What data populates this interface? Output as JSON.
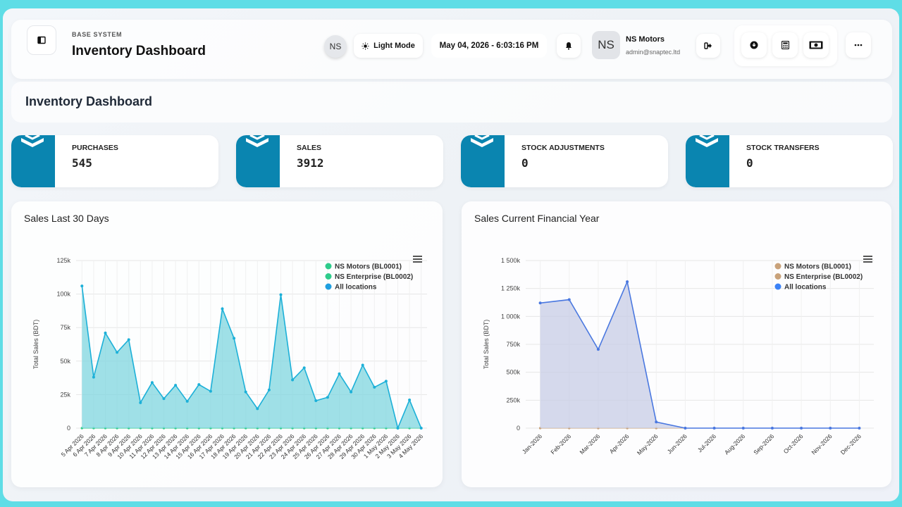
{
  "header": {
    "eyebrow": "BASE SYSTEM",
    "title": "Inventory Dashboard",
    "ns_chip": "NS",
    "light_mode_label": "Light Mode",
    "datetime": "May 04, 2026 - 6:03:16 PM",
    "avatar": "NS",
    "user_name": "NS Motors",
    "user_email": "admin@snaptec.ltd"
  },
  "page_title": "Inventory Dashboard",
  "stats": [
    {
      "label": "PURCHASES",
      "value": "545"
    },
    {
      "label": "SALES",
      "value": "3912"
    },
    {
      "label": "STOCK ADJUSTMENTS",
      "value": "0"
    },
    {
      "label": "STOCK TRANSFERS",
      "value": "0"
    }
  ],
  "colors": {
    "accent": "#0a85b0",
    "series_30days": "#1cb0d8",
    "fill_30days": "#7fd6df",
    "series_fy": "#4a78e0",
    "fill_fy": "#c7cce6",
    "legend_green": "#2ecc8b",
    "legend_teal": "#2ecc8b",
    "legend_blue": "#1f9fe0",
    "legend_tan": "#c9a27a",
    "legend_blue2": "#3b82f6"
  },
  "chart_data": [
    {
      "type": "area",
      "title": "Sales Last 30 Days",
      "ylabel": "Total Sales (BDT)",
      "ylim": [
        0,
        125000
      ],
      "yticks": [
        "0",
        "25k",
        "50k",
        "75k",
        "100k",
        "125k"
      ],
      "categories": [
        "5 Apr 2026",
        "6 Apr 2026",
        "7 Apr 2026",
        "8 Apr 2026",
        "9 Apr 2026",
        "10 Apr 2026",
        "11 Apr 2026",
        "12 Apr 2026",
        "13 Apr 2026",
        "14 Apr 2026",
        "15 Apr 2026",
        "16 Apr 2026",
        "17 Apr 2026",
        "18 Apr 2026",
        "19 Apr 2026",
        "20 Apr 2026",
        "21 Apr 2026",
        "22 Apr 2026",
        "23 Apr 2026",
        "24 Apr 2026",
        "25 Apr 2026",
        "26 Apr 2026",
        "27 Apr 2026",
        "28 Apr 2026",
        "29 Apr 2026",
        "30 Apr 2026",
        "1 May 2026",
        "2 May 2026",
        "3 May 2026",
        "4 May 2026"
      ],
      "series": [
        {
          "name": "NS Motors (BL0001)",
          "values": [
            0,
            0,
            0,
            0,
            0,
            0,
            0,
            0,
            0,
            0,
            0,
            0,
            0,
            0,
            0,
            0,
            0,
            0,
            0,
            0,
            0,
            0,
            0,
            0,
            0,
            0,
            0,
            0,
            0,
            0
          ]
        },
        {
          "name": "NS Enterprise (BL0002)",
          "values": [
            0,
            0,
            0,
            0,
            0,
            0,
            0,
            0,
            0,
            0,
            0,
            0,
            0,
            0,
            0,
            0,
            0,
            0,
            0,
            0,
            0,
            0,
            0,
            0,
            0,
            0,
            0,
            0,
            0,
            0
          ]
        },
        {
          "name": "All locations",
          "values": [
            106000,
            38000,
            71000,
            56500,
            66000,
            19000,
            34000,
            22000,
            32000,
            20000,
            32500,
            27500,
            89000,
            67000,
            27000,
            14500,
            28500,
            99500,
            36000,
            45000,
            20500,
            23000,
            40500,
            27000,
            47000,
            30500,
            35000,
            0,
            21000,
            0
          ]
        }
      ],
      "legend": "top-right"
    },
    {
      "type": "area",
      "title": "Sales Current Financial Year",
      "ylabel": "Total Sales (BDT)",
      "ylim": [
        0,
        1500000
      ],
      "yticks": [
        "0",
        "250k",
        "500k",
        "750k",
        "1 000k",
        "1 250k",
        "1 500k"
      ],
      "categories": [
        "Jan-2026",
        "Feb-2026",
        "Mar-2026",
        "Apr-2026",
        "May-2026",
        "Jun-2026",
        "Jul-2026",
        "Aug-2026",
        "Sep-2026",
        "Oct-2026",
        "Nov-2026",
        "Dec-2026"
      ],
      "series": [
        {
          "name": "NS Motors (BL0001)",
          "values": [
            0,
            0,
            0,
            0,
            0,
            0,
            0,
            0,
            0,
            0,
            0,
            0
          ]
        },
        {
          "name": "NS Enterprise (BL0002)",
          "values": [
            0,
            0,
            0,
            0,
            0,
            0,
            0,
            0,
            0,
            0,
            0,
            0
          ]
        },
        {
          "name": "All locations",
          "values": [
            1120000,
            1150000,
            705000,
            1310000,
            55000,
            0,
            0,
            0,
            0,
            0,
            0,
            0
          ]
        }
      ],
      "legend": "top-right"
    }
  ]
}
